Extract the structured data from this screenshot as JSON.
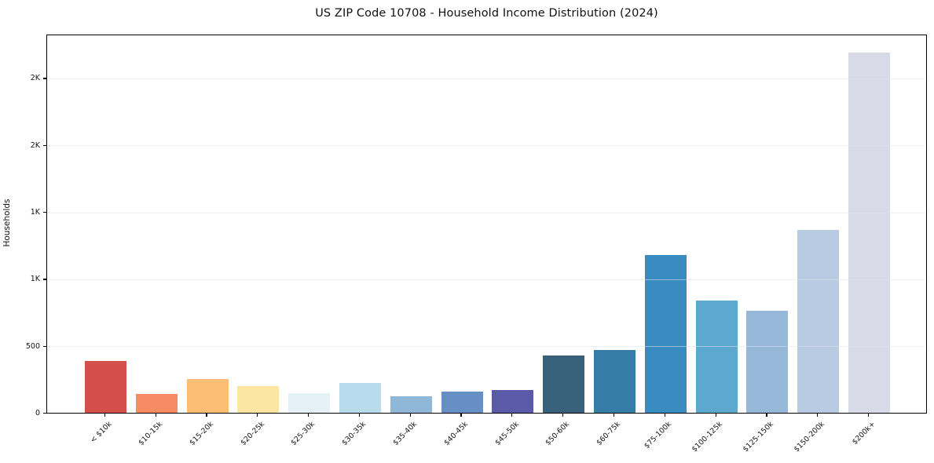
{
  "chart_data": {
    "type": "bar",
    "title": "US ZIP Code 10708 - Household Income Distribution (2024)",
    "xlabel": "",
    "ylabel": "Households",
    "categories": [
      "< $10k",
      "$10-15k",
      "$15-20k",
      "$20-25k",
      "$25-30k",
      "$30-35k",
      "$35-40k",
      "$40-45k",
      "$45-50k",
      "$50-60k",
      "$60-75k",
      "$75-100k",
      "$100-125k",
      "$125-150k",
      "$150-200k",
      "$200k+"
    ],
    "values": [
      385,
      138,
      250,
      200,
      148,
      225,
      123,
      160,
      172,
      430,
      470,
      1180,
      840,
      760,
      1365,
      2690
    ],
    "bar_colors": [
      "#d34f4a",
      "#f68b64",
      "#fcbd74",
      "#fde5a3",
      "#e4f1f7",
      "#b8dcec",
      "#8fb8d8",
      "#658fc5",
      "#5a5aa8",
      "#38607a",
      "#357da6",
      "#388cc0",
      "#5da8cf",
      "#95b8d9",
      "#b9cbe3",
      "#d8dae8"
    ],
    "ylim": [
      0,
      2830
    ],
    "yticks": [
      {
        "value": 0,
        "label": "0"
      },
      {
        "value": 500,
        "label": "500"
      },
      {
        "value": 1000,
        "label": "1K"
      },
      {
        "value": 1500,
        "label": "1K"
      },
      {
        "value": 2000,
        "label": "2K"
      },
      {
        "value": 2500,
        "label": "2K"
      }
    ],
    "grid": "horizontal",
    "legend": "none"
  },
  "colors": {
    "background": "#ffffff",
    "axis": "#000000",
    "grid": "#e9e9f2",
    "text": "#111111"
  }
}
